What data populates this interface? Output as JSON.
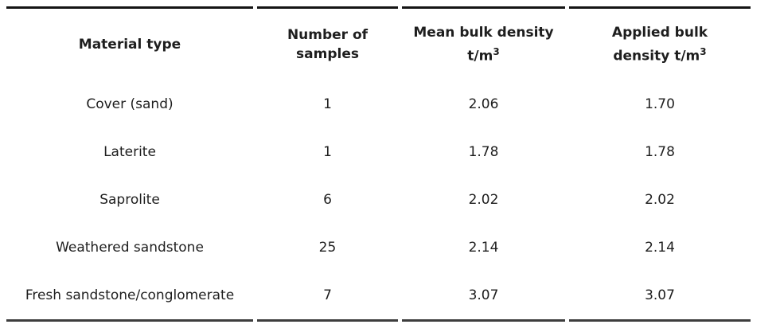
{
  "table": {
    "headers": {
      "material": "Material type",
      "samples_line1": "Number of",
      "samples_line2": "samples",
      "mean_line1": "Mean bulk density",
      "mean_line2_base": "t/m",
      "applied_line1": "Applied bulk",
      "applied_line2_base": "density t/m",
      "density_unit_sup": "3"
    },
    "rows": [
      {
        "material": "Cover (sand)",
        "samples": "1",
        "mean": "2.06",
        "applied": "1.70"
      },
      {
        "material": "Laterite",
        "samples": "1",
        "mean": "1.78",
        "applied": "1.78"
      },
      {
        "material": "Saprolite",
        "samples": "6",
        "mean": "2.02",
        "applied": "2.02"
      },
      {
        "material": "Weathered sandstone",
        "samples": "25",
        "mean": "2.14",
        "applied": "2.14"
      },
      {
        "material": "Fresh sandstone/conglomerate",
        "samples": "7",
        "mean": "3.07",
        "applied": "3.07"
      }
    ]
  },
  "chart_data": {
    "type": "table",
    "title": "",
    "columns": [
      "Material type",
      "Number of samples",
      "Mean bulk density t/m³",
      "Applied bulk density t/m³"
    ],
    "rows": [
      [
        "Cover (sand)",
        1,
        2.06,
        1.7
      ],
      [
        "Laterite",
        1,
        1.78,
        1.78
      ],
      [
        "Saprolite",
        6,
        2.02,
        2.02
      ],
      [
        "Weathered sandstone",
        25,
        2.14,
        2.14
      ],
      [
        "Fresh sandstone/conglomerate",
        7,
        3.07,
        3.07
      ]
    ],
    "layout_hints": {
      "header_bold": true,
      "cell_alignment": "center",
      "rules": "horizontal top and bottom only, segmented per column with small gaps"
    }
  },
  "colors": {
    "background": "#ffffff",
    "text": "#1e1e1e",
    "rule_top": "#141414",
    "rule_bottom": "#3d3d3d"
  }
}
